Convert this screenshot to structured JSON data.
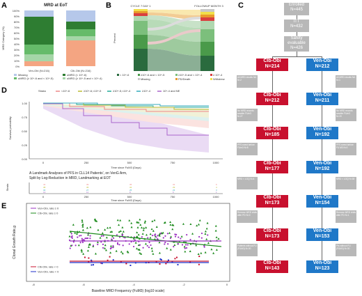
{
  "panels": {
    "a": "A",
    "b": "B",
    "c": "C",
    "d": "D",
    "e": "E"
  },
  "panel_a": {
    "title": "MRD at EoT",
    "yaxis_label": "MRD Category (%)",
    "yticks": [
      "100%",
      "90%",
      "80%",
      "70%",
      "60%",
      "50%",
      "40%",
      "30%",
      "20%",
      "10%",
      "0%"
    ],
    "bars": [
      {
        "label": "Ven-Obi (N=216)"
      },
      {
        "label": "Clb-Obi (N=216)"
      }
    ],
    "legend": [
      "Missing",
      "uMRD (≥ 10^-6 and < 10^-5)",
      "uMRD (< 10^-6)",
      "uMRD (≥ 10^-5 and < 10^-4)"
    ]
  },
  "panel_b": {
    "col_labels": [
      "CYCLE 7 DAY 1",
      "FOLLOWUP MONTH 3"
    ],
    "yaxis_label": "Percent",
    "legend": [
      "< 10^-6",
      "≥10^-6 and < 10^-5",
      "≥10^-5 and < 10^-4",
      "≥ 10^-4",
      "Missing",
      "PD/Death",
      "Withdrew"
    ]
  },
  "panel_c": {
    "top": [
      {
        "label": "Enrolled",
        "n": "N=445"
      },
      {
        "label": "ITT",
        "n": "N=432"
      },
      {
        "label": "Safety evaluable",
        "n": "N=426"
      }
    ],
    "left_boxes": [
      {
        "arm": "Clb-Obi",
        "n": "N=214"
      },
      {
        "arm": "Clb-Obi",
        "n": "N=212"
      },
      {
        "arm": "Clb-Obi",
        "n": "N=185"
      },
      {
        "arm": "Clb-Obi",
        "n": "N=177"
      },
      {
        "arm": "Clb-Obi",
        "n": "N=173"
      },
      {
        "arm": "Clb-Obi",
        "n": "N=173"
      },
      {
        "arm": "Clb-Obi",
        "n": "N=143"
      }
    ],
    "right_boxes": [
      {
        "arm": "Ven-Obi",
        "n": "N=212"
      },
      {
        "arm": "Ven-Obi",
        "n": "N=211"
      },
      {
        "arm": "Ven-Obi",
        "n": "N=192"
      },
      {
        "arm": "Ven-Obi",
        "n": "N=192"
      },
      {
        "arm": "Ven-Obi",
        "n": "N=154"
      },
      {
        "arm": "Ven-Obi",
        "n": "N=153"
      },
      {
        "arm": "Ven-Obi",
        "n": "N=123"
      }
    ],
    "left_side": [
      "All MRD results NA N=2",
      "No MRD records smaller FUm3 N=27",
      "PFS event before FUm3 N=8",
      "MRD < LOQ N=4",
      "Remove MRD visits after PD N=0",
      "Patients without FU (FUM3) N=30"
    ],
    "right_side": [
      "All MRD results NA N=1",
      "No MRD records smaller FUm3 N=19",
      "PFS event before FU M3 N=0",
      "MRD < LOQ N=38",
      "Remove MRD visits after PD N=1",
      "Pts without FU (FUM3) N=30"
    ]
  },
  "panel_d": {
    "yaxis_label": "Survival probability",
    "xaxis_label": "Time since FuM3 (Days)",
    "yticks": [
      "1.00",
      "0.75",
      "0.50",
      "0.25",
      "0.00"
    ],
    "xticks": [
      "0",
      "250",
      "500",
      "750",
      "1000"
    ],
    "strata_label": "Strata",
    "strata": [
      "<10^-6",
      "≥10^-6,<10^-5",
      "≥10^-5,<10^-4",
      "≥10^-4",
      "10^-4 and NE"
    ],
    "landmark_title1": "A Landmark Analyses of PFS in CLL14 Patients', on VenG Arm,",
    "landmark_title2": "Split by Log-Reduction in MRD, Landmarking at EOT",
    "risk_xlabel": "Time since FuM3 (Days)",
    "risk_strata_label": "Strata"
  },
  "panel_e": {
    "yaxis_label": "Clonal Growth Rate,g",
    "xaxis_label": "Baseline MRD Frequency (FuM3) (log10 scale)",
    "xticks": [
      "-8",
      "-6",
      "-4",
      "-2",
      "0"
    ],
    "legend_top": [
      "Ven-Obi, rate ≥ 0",
      "Clb-Obi, rate ≥ 0"
    ],
    "legend_bottom": [
      "Clb-Obi, rate < 0",
      "Ven-Obi, rate < 0"
    ]
  },
  "colors": {
    "red": "#c8102e",
    "blue": "#1f78c8",
    "grey": "#b8b8b8",
    "purple": "#9b30c0",
    "green": "#1b8a1b"
  }
}
